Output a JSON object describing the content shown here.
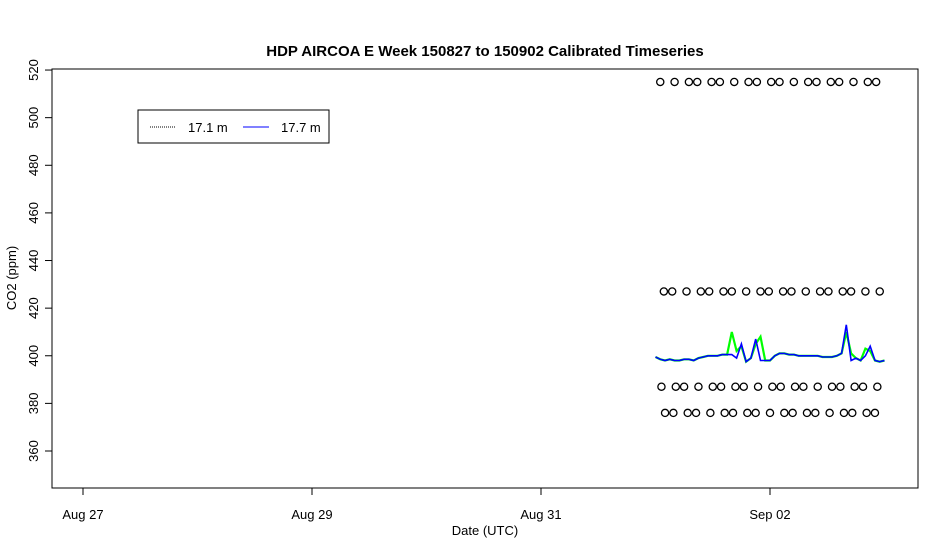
{
  "chart_data": {
    "type": "line",
    "title": "HDP AIRCOA E  Week 150827 to 150902  Calibrated Timeseries",
    "xlabel": "Date (UTC)",
    "ylabel": "CO2 (ppm)",
    "xlim": [
      "2015-08-26T19:00",
      "2015-09-03T12:00"
    ],
    "ylim": [
      347,
      520
    ],
    "yticks": [
      360,
      380,
      400,
      420,
      440,
      460,
      480,
      500,
      520
    ],
    "xticks": [
      {
        "label": "Aug 27",
        "date": "2015-08-27T00:00"
      },
      {
        "label": "Aug 29",
        "date": "2015-08-29T00:00"
      },
      {
        "label": "Aug 31",
        "date": "2015-08-31T00:00"
      },
      {
        "label": "Sep 02",
        "date": "2015-09-02T00:00"
      }
    ],
    "legend_placement": "top-left",
    "series_start": "2015-09-01T00:00",
    "series_step_hours": 1,
    "series": [
      {
        "name": "17.1 m",
        "color": "#00ff00",
        "style": "dotted",
        "values": [
          399.5,
          398.5,
          398,
          398.5,
          398,
          398,
          398.5,
          398.5,
          398,
          399,
          399.5,
          400,
          400,
          400,
          400.5,
          400.5,
          410,
          402,
          404,
          397.5,
          399,
          405,
          408,
          398,
          398,
          400,
          401,
          401,
          400.5,
          400.5,
          400,
          400,
          400,
          400,
          400,
          399.5,
          399.5,
          399.5,
          400,
          401,
          410,
          401,
          399,
          398,
          403,
          402,
          398,
          397.5,
          398
        ]
      },
      {
        "name": "17.7 m",
        "color": "#0000ff",
        "style": "solid",
        "values": [
          399.5,
          398.5,
          398,
          398.5,
          398,
          398,
          398.5,
          398.5,
          398,
          399,
          399.5,
          400,
          400,
          400,
          400.5,
          400.5,
          400.5,
          399,
          405,
          397.5,
          399,
          407,
          398,
          398,
          398,
          400,
          401,
          401,
          400.5,
          400.5,
          400,
          400,
          400,
          400,
          400,
          399.5,
          399.5,
          399.5,
          400,
          401,
          413,
          398,
          399,
          398,
          400,
          404,
          398,
          397.5,
          398
        ]
      }
    ],
    "calibration_points": {
      "levels": [
        515,
        427,
        387,
        376
      ],
      "times": [
        "2015-09-01T01:30",
        "2015-09-01T04:00",
        "2015-09-01T06:30",
        "2015-09-01T09:00",
        "2015-09-01T11:30",
        "2015-09-01T14:00",
        "2015-09-01T16:30",
        "2015-09-01T19:00",
        "2015-09-01T21:30",
        "2015-09-02T00:00",
        "2015-09-02T02:30",
        "2015-09-02T05:00",
        "2015-09-02T07:30",
        "2015-09-02T10:00",
        "2015-09-02T12:30",
        "2015-09-02T15:00",
        "2015-09-02T17:30",
        "2015-09-02T20:00",
        "2015-09-02T22:30"
      ]
    }
  }
}
